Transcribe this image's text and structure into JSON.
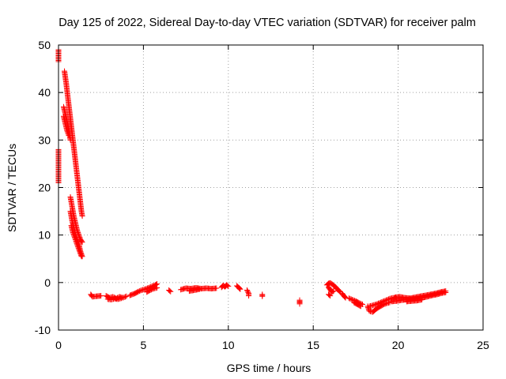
{
  "chart_data": {
    "type": "scatter",
    "title": "Day 125 of 2022, Sidereal Day-to-day VTEC variation (SDTVAR) for receiver palm",
    "xlabel": "GPS time / hours",
    "ylabel": "SDTVAR / TECUs",
    "xlim": [
      0,
      25
    ],
    "ylim": [
      -10,
      50
    ],
    "x_ticks": [
      0,
      5,
      10,
      15,
      20,
      25
    ],
    "y_ticks": [
      -10,
      0,
      10,
      20,
      30,
      40,
      50
    ],
    "x_tick_labels": [
      "0",
      "5",
      "10",
      "15",
      "20",
      "25"
    ],
    "y_tick_labels": [
      "-10",
      "0",
      "10",
      "20",
      "30",
      "40",
      "50"
    ],
    "grid": true,
    "marker": "+",
    "series": [
      {
        "name": "SDTVAR",
        "color": "#ff0000",
        "segments": [
          [
            [
              0.0,
              49.0
            ],
            [
              0.0,
              46.5
            ]
          ],
          [
            [
              0.0,
              28.0
            ],
            [
              0.0,
              21.0
            ]
          ],
          [
            [
              0.35,
              44.5
            ],
            [
              0.45,
              42.0
            ],
            [
              0.55,
              39.0
            ],
            [
              0.65,
              36.0
            ],
            [
              0.75,
              33.0
            ],
            [
              0.85,
              30.0
            ],
            [
              0.95,
              27.0
            ],
            [
              1.05,
              24.0
            ],
            [
              1.15,
              21.0
            ],
            [
              1.25,
              18.0
            ],
            [
              1.35,
              15.0
            ],
            [
              1.4,
              14.0
            ]
          ],
          [
            [
              0.3,
              37.0
            ],
            [
              0.4,
              35.5
            ],
            [
              0.5,
              34.0
            ],
            [
              0.6,
              32.0
            ],
            [
              0.7,
              30.0
            ]
          ],
          [
            [
              0.3,
              35.0
            ],
            [
              0.4,
              33.5
            ],
            [
              0.5,
              32.0
            ],
            [
              0.6,
              31.0
            ]
          ],
          [
            [
              0.7,
              18.0
            ],
            [
              0.8,
              16.0
            ],
            [
              0.9,
              14.0
            ],
            [
              1.0,
              12.5
            ],
            [
              1.1,
              11.0
            ],
            [
              1.2,
              10.0
            ],
            [
              1.3,
              9.0
            ],
            [
              1.4,
              8.5
            ]
          ],
          [
            [
              0.7,
              15.0
            ],
            [
              0.8,
              13.0
            ],
            [
              0.9,
              11.5
            ],
            [
              1.0,
              10.0
            ],
            [
              1.1,
              9.0
            ],
            [
              1.2,
              8.0
            ],
            [
              1.3,
              6.5
            ],
            [
              1.4,
              5.5
            ]
          ],
          [
            [
              0.75,
              12.0
            ],
            [
              0.85,
              10.5
            ],
            [
              0.95,
              9.5
            ],
            [
              1.05,
              8.5
            ],
            [
              1.15,
              7.5
            ],
            [
              1.25,
              6.5
            ],
            [
              1.35,
              5.5
            ]
          ],
          [
            [
              1.9,
              -2.5
            ],
            [
              2.0,
              -3.0
            ],
            [
              2.2,
              -2.9
            ],
            [
              2.5,
              -2.8
            ]
          ],
          [
            [
              2.8,
              -2.8
            ],
            [
              3.0,
              -3.2
            ],
            [
              3.2,
              -3.0
            ],
            [
              3.4,
              -3.3
            ],
            [
              3.6,
              -3.0
            ],
            [
              3.8,
              -3.2
            ],
            [
              4.0,
              -2.9
            ]
          ],
          [
            [
              2.9,
              -3.5
            ],
            [
              3.1,
              -3.6
            ],
            [
              3.3,
              -3.4
            ],
            [
              3.5,
              -3.5
            ],
            [
              3.7,
              -3.3
            ]
          ],
          [
            [
              4.2,
              -2.7
            ],
            [
              4.5,
              -2.3
            ],
            [
              4.7,
              -1.9
            ],
            [
              4.9,
              -1.6
            ],
            [
              5.1,
              -1.4
            ],
            [
              5.3,
              -1.1
            ],
            [
              5.5,
              -0.8
            ],
            [
              5.7,
              -0.5
            ],
            [
              5.8,
              -0.3
            ]
          ],
          [
            [
              5.2,
              -2.0
            ],
            [
              5.4,
              -1.6
            ],
            [
              5.6,
              -1.3
            ],
            [
              5.8,
              -1.1
            ]
          ],
          [
            [
              6.5,
              -1.6
            ],
            [
              6.6,
              -1.9
            ]
          ],
          [
            [
              7.2,
              -1.5
            ],
            [
              7.5,
              -1.2
            ],
            [
              7.8,
              -1.3
            ],
            [
              8.1,
              -1.1
            ],
            [
              8.4,
              -1.3
            ],
            [
              8.7,
              -1.2
            ],
            [
              9.0,
              -1.3
            ],
            [
              9.3,
              -1.2
            ]
          ],
          [
            [
              7.7,
              -1.8
            ],
            [
              8.0,
              -1.6
            ],
            [
              8.3,
              -1.4
            ]
          ],
          [
            [
              9.6,
              -1.0
            ],
            [
              9.7,
              -0.6
            ],
            [
              9.8,
              -0.9
            ],
            [
              9.9,
              -0.5
            ],
            [
              10.0,
              -0.8
            ]
          ],
          [
            [
              10.5,
              -0.7
            ],
            [
              10.6,
              -1.0
            ],
            [
              10.7,
              -1.4
            ]
          ],
          [
            [
              11.1,
              -1.6
            ],
            [
              11.2,
              -2.3
            ],
            [
              11.2,
              -2.8
            ]
          ],
          [
            [
              12.0,
              -2.5
            ],
            [
              12.0,
              -2.9
            ]
          ],
          [
            [
              14.2,
              -3.7
            ],
            [
              14.2,
              -4.5
            ]
          ],
          [
            [
              15.8,
              -0.5
            ],
            [
              15.9,
              -0.2
            ],
            [
              16.0,
              -0.1
            ],
            [
              16.1,
              -0.3
            ],
            [
              16.2,
              -0.6
            ],
            [
              16.3,
              -0.9
            ],
            [
              16.4,
              -1.3
            ],
            [
              16.5,
              -1.7
            ],
            [
              16.6,
              -2.0
            ]
          ],
          [
            [
              15.9,
              -1.0
            ],
            [
              16.0,
              -1.5
            ],
            [
              16.1,
              -2.0
            ],
            [
              16.2,
              -1.8
            ]
          ],
          [
            [
              15.9,
              -2.5
            ],
            [
              16.0,
              -2.8
            ]
          ],
          [
            [
              16.7,
              -2.3
            ],
            [
              16.8,
              -2.8
            ],
            [
              16.9,
              -3.2
            ]
          ],
          [
            [
              17.1,
              -3.3
            ],
            [
              17.3,
              -3.6
            ],
            [
              17.5,
              -3.9
            ],
            [
              17.7,
              -4.3
            ],
            [
              17.9,
              -4.6
            ]
          ],
          [
            [
              17.4,
              -4.2
            ],
            [
              17.6,
              -4.6
            ],
            [
              17.8,
              -5.0
            ]
          ],
          [
            [
              18.2,
              -5.0
            ],
            [
              18.3,
              -6.0
            ],
            [
              18.5,
              -6.2
            ],
            [
              18.7,
              -5.6
            ],
            [
              18.9,
              -5.1
            ],
            [
              19.1,
              -4.7
            ],
            [
              19.3,
              -4.4
            ],
            [
              19.5,
              -4.2
            ]
          ],
          [
            [
              18.3,
              -5.0
            ],
            [
              18.5,
              -4.8
            ],
            [
              18.7,
              -4.6
            ],
            [
              18.9,
              -4.3
            ],
            [
              19.1,
              -4.0
            ],
            [
              19.3,
              -3.7
            ],
            [
              19.5,
              -3.4
            ],
            [
              19.7,
              -3.2
            ],
            [
              19.9,
              -3.4
            ]
          ],
          [
            [
              19.6,
              -4.0
            ],
            [
              19.9,
              -3.9
            ],
            [
              20.2,
              -3.7
            ],
            [
              20.5,
              -3.6
            ],
            [
              20.8,
              -3.5
            ],
            [
              21.1,
              -3.4
            ],
            [
              21.4,
              -3.2
            ],
            [
              21.7,
              -3.0
            ],
            [
              22.0,
              -2.7
            ],
            [
              22.3,
              -2.5
            ],
            [
              22.6,
              -2.2
            ],
            [
              22.8,
              -2.1
            ]
          ],
          [
            [
              19.8,
              -3.1
            ],
            [
              20.1,
              -3.0
            ],
            [
              20.4,
              -3.2
            ],
            [
              20.7,
              -3.3
            ],
            [
              21.0,
              -3.1
            ],
            [
              21.3,
              -2.9
            ],
            [
              21.6,
              -2.7
            ],
            [
              21.9,
              -2.5
            ],
            [
              22.2,
              -2.3
            ],
            [
              22.5,
              -2.0
            ],
            [
              22.8,
              -1.8
            ]
          ],
          [
            [
              20.5,
              -4.0
            ],
            [
              20.8,
              -3.9
            ],
            [
              21.1,
              -3.8
            ],
            [
              21.4,
              -3.6
            ]
          ]
        ]
      }
    ]
  }
}
